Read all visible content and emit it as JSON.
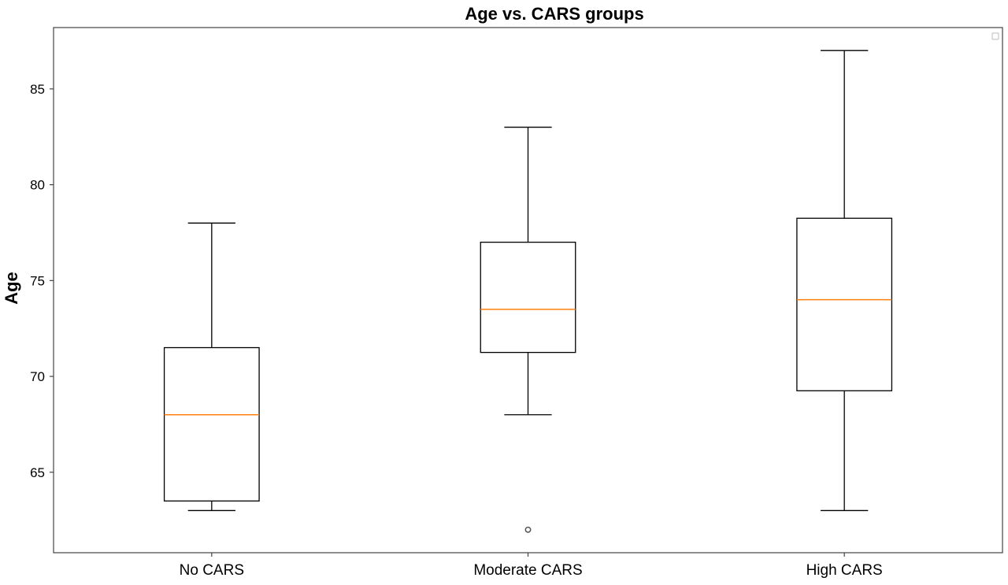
{
  "chart_data": {
    "type": "box",
    "title": "Age vs. CARS groups",
    "xlabel": "",
    "ylabel": "Age",
    "ylim": [
      60.8,
      88.2
    ],
    "yticks": [
      65,
      70,
      75,
      80,
      85
    ],
    "ytick_labels": [
      "65",
      "70",
      "75",
      "80",
      "85"
    ],
    "categories": [
      "No CARS",
      "Moderate CARS",
      "High CARS"
    ],
    "grid": false,
    "legend": "top-right (empty)",
    "colors": {
      "box": "#000000",
      "median": "#ff7f0e",
      "frame": "#444444",
      "outlier": "#555555"
    },
    "boxes": [
      {
        "category": "No CARS",
        "whisker_low": 63,
        "q1": 63.5,
        "median": 68,
        "q3": 71.5,
        "whisker_high": 78,
        "outliers": []
      },
      {
        "category": "Moderate CARS",
        "whisker_low": 68,
        "q1": 71.25,
        "median": 73.5,
        "q3": 77,
        "whisker_high": 83,
        "outliers": [
          62
        ]
      },
      {
        "category": "High CARS",
        "whisker_low": 63,
        "q1": 69.25,
        "median": 74,
        "q3": 78.25,
        "whisker_high": 87,
        "outliers": []
      }
    ]
  }
}
